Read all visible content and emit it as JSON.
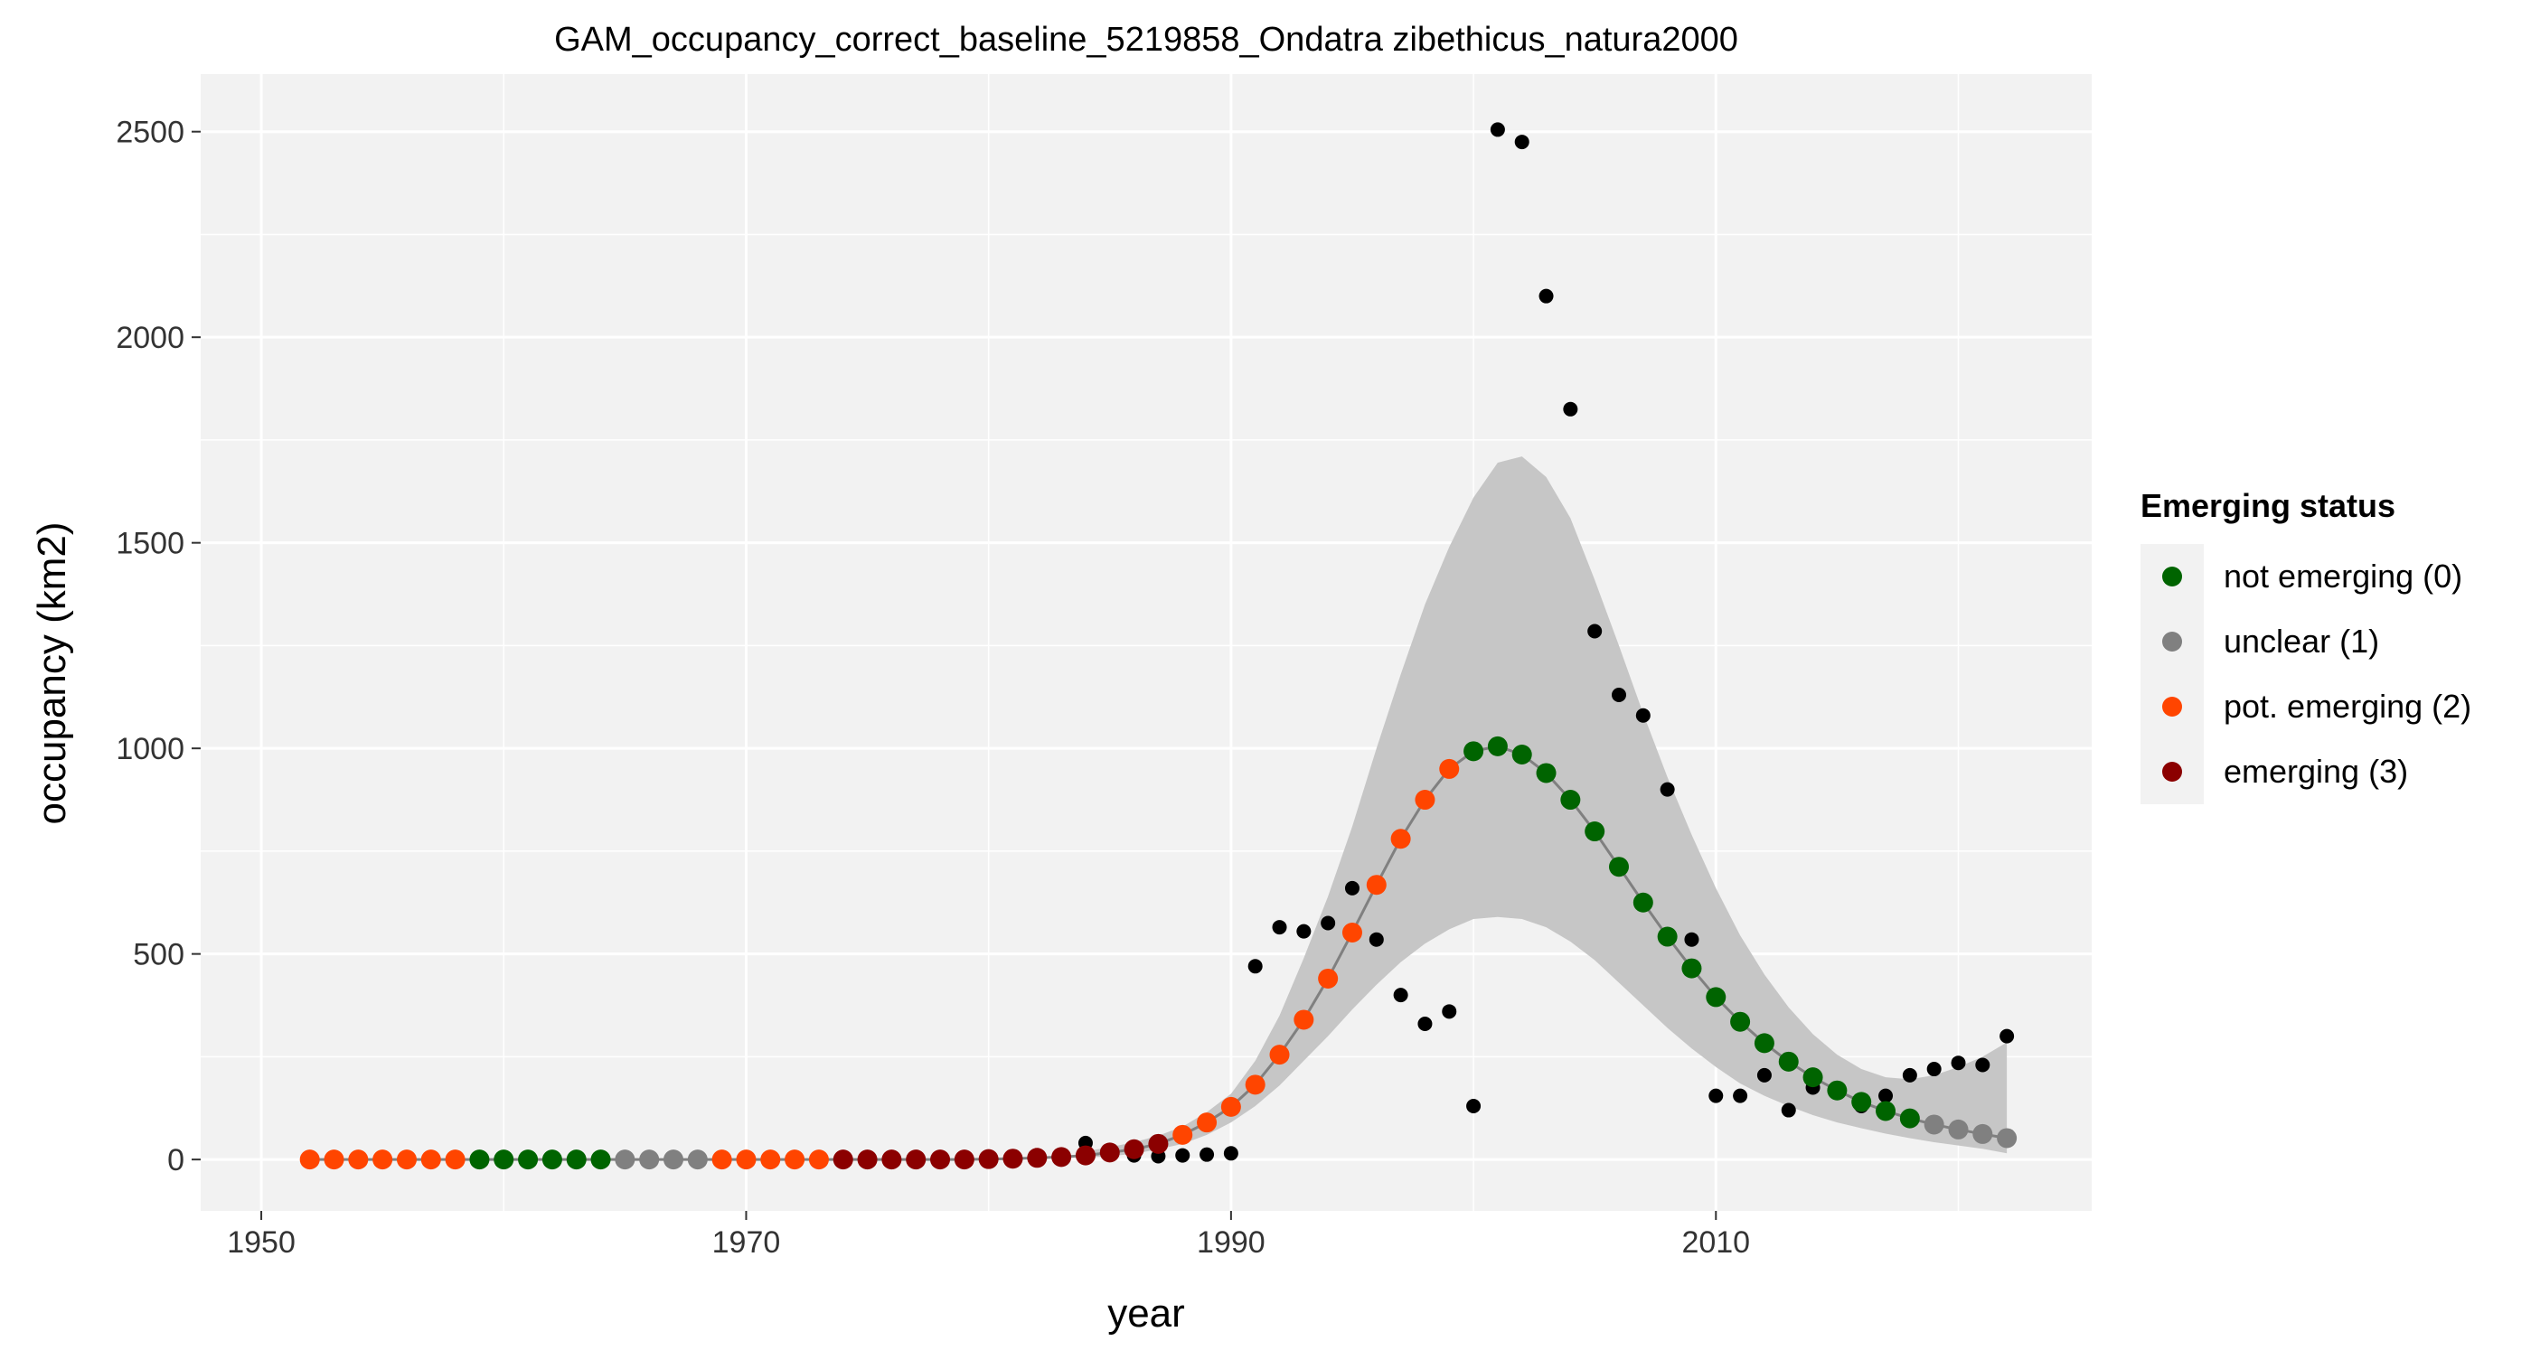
{
  "chart_data": {
    "type": "scatter",
    "title": "GAM_occupancy_correct_baseline_5219858_Ondatra zibethicus_natura2000",
    "xlabel": "year",
    "ylabel": "occupancy (km2)",
    "xlim": [
      1947.5,
      2025.5
    ],
    "ylim": [
      -125,
      2640
    ],
    "x_ticks": [
      1950,
      1970,
      1990,
      2010
    ],
    "y_ticks": [
      0,
      500,
      1000,
      1500,
      2000,
      2500
    ],
    "grid": true,
    "background": "#f2f2f2",
    "legend": {
      "title": "Emerging status",
      "position": "right",
      "items": [
        {
          "label": "not emerging (0)",
          "color": "#006400"
        },
        {
          "label": "unclear (1)",
          "color": "#808080"
        },
        {
          "label": "pot. emerging (2)",
          "color": "#ff4500"
        },
        {
          "label": "emerging (3)",
          "color": "#8b0000"
        }
      ]
    },
    "observed": {
      "color": "#000000",
      "points": [
        [
          1984,
          40
        ],
        [
          1985,
          15
        ],
        [
          1986,
          10
        ],
        [
          1987,
          8
        ],
        [
          1988,
          10
        ],
        [
          1989,
          12
        ],
        [
          1990,
          15
        ],
        [
          1991,
          470
        ],
        [
          1992,
          565
        ],
        [
          1993,
          555
        ],
        [
          1994,
          575
        ],
        [
          1995,
          660
        ],
        [
          1996,
          535
        ],
        [
          1997,
          400
        ],
        [
          1998,
          330
        ],
        [
          1999,
          360
        ],
        [
          2000,
          130
        ],
        [
          2001,
          2505
        ],
        [
          2002,
          2475
        ],
        [
          2003,
          2100
        ],
        [
          2004,
          1825
        ],
        [
          2005,
          1285
        ],
        [
          2006,
          1130
        ],
        [
          2007,
          1080
        ],
        [
          2008,
          900
        ],
        [
          2009,
          535
        ],
        [
          2010,
          155
        ],
        [
          2011,
          155
        ],
        [
          2012,
          205
        ],
        [
          2013,
          120
        ],
        [
          2014,
          175
        ],
        [
          2015,
          165
        ],
        [
          2016,
          130
        ],
        [
          2017,
          155
        ],
        [
          2018,
          205
        ],
        [
          2019,
          220
        ],
        [
          2020,
          235
        ],
        [
          2021,
          230
        ],
        [
          2022,
          300
        ]
      ]
    },
    "fit_line_color": "#808080",
    "ribbon_color": "#c6c6c6",
    "ribbon": {
      "x": [
        1984,
        1985,
        1986,
        1987,
        1988,
        1989,
        1990,
        1991,
        1992,
        1993,
        1994,
        1995,
        1996,
        1997,
        1998,
        1999,
        2000,
        2001,
        2002,
        2003,
        2004,
        2005,
        2006,
        2007,
        2008,
        2009,
        2010,
        2011,
        2012,
        2013,
        2014,
        2015,
        2016,
        2017,
        2018,
        2019,
        2020,
        2021,
        2022
      ],
      "lower": [
        5,
        8,
        14,
        25,
        38,
        60,
        90,
        130,
        180,
        240,
        300,
        365,
        425,
        480,
        525,
        560,
        585,
        590,
        585,
        565,
        530,
        485,
        430,
        375,
        320,
        270,
        225,
        185,
        155,
        130,
        108,
        90,
        76,
        63,
        52,
        42,
        34,
        26,
        15
      ],
      "upper": [
        20,
        30,
        42,
        58,
        80,
        115,
        160,
        240,
        350,
        490,
        640,
        810,
        1000,
        1180,
        1350,
        1490,
        1610,
        1695,
        1710,
        1660,
        1560,
        1410,
        1250,
        1085,
        930,
        790,
        660,
        545,
        450,
        370,
        305,
        255,
        220,
        200,
        195,
        205,
        225,
        250,
        285
      ]
    },
    "fitted": [
      {
        "x": 1952,
        "y": 0,
        "status": 2
      },
      {
        "x": 1953,
        "y": 0,
        "status": 2
      },
      {
        "x": 1954,
        "y": 0,
        "status": 2
      },
      {
        "x": 1955,
        "y": 0,
        "status": 2
      },
      {
        "x": 1956,
        "y": 0,
        "status": 2
      },
      {
        "x": 1957,
        "y": 0,
        "status": 2
      },
      {
        "x": 1958,
        "y": 0,
        "status": 2
      },
      {
        "x": 1959,
        "y": 0,
        "status": 0
      },
      {
        "x": 1960,
        "y": 0,
        "status": 0
      },
      {
        "x": 1961,
        "y": 0,
        "status": 0
      },
      {
        "x": 1962,
        "y": 0,
        "status": 0
      },
      {
        "x": 1963,
        "y": 0,
        "status": 0
      },
      {
        "x": 1964,
        "y": 0,
        "status": 0
      },
      {
        "x": 1965,
        "y": 0,
        "status": 1
      },
      {
        "x": 1966,
        "y": 0,
        "status": 1
      },
      {
        "x": 1967,
        "y": 0,
        "status": 1
      },
      {
        "x": 1968,
        "y": 0,
        "status": 1
      },
      {
        "x": 1969,
        "y": 0,
        "status": 2
      },
      {
        "x": 1970,
        "y": 0,
        "status": 2
      },
      {
        "x": 1971,
        "y": 0,
        "status": 2
      },
      {
        "x": 1972,
        "y": 0,
        "status": 2
      },
      {
        "x": 1973,
        "y": 0,
        "status": 2
      },
      {
        "x": 1974,
        "y": 0,
        "status": 3
      },
      {
        "x": 1975,
        "y": 0,
        "status": 3
      },
      {
        "x": 1976,
        "y": 0,
        "status": 3
      },
      {
        "x": 1977,
        "y": 0,
        "status": 3
      },
      {
        "x": 1978,
        "y": 0,
        "status": 3
      },
      {
        "x": 1979,
        "y": 0,
        "status": 3
      },
      {
        "x": 1980,
        "y": 1,
        "status": 3
      },
      {
        "x": 1981,
        "y": 2,
        "status": 3
      },
      {
        "x": 1982,
        "y": 4,
        "status": 3
      },
      {
        "x": 1983,
        "y": 6,
        "status": 3
      },
      {
        "x": 1984,
        "y": 10,
        "status": 3
      },
      {
        "x": 1985,
        "y": 17,
        "status": 3
      },
      {
        "x": 1986,
        "y": 25,
        "status": 3
      },
      {
        "x": 1987,
        "y": 38,
        "status": 3
      },
      {
        "x": 1988,
        "y": 60,
        "status": 2
      },
      {
        "x": 1989,
        "y": 90,
        "status": 2
      },
      {
        "x": 1990,
        "y": 128,
        "status": 2
      },
      {
        "x": 1991,
        "y": 182,
        "status": 2
      },
      {
        "x": 1992,
        "y": 255,
        "status": 2
      },
      {
        "x": 1993,
        "y": 340,
        "status": 2
      },
      {
        "x": 1994,
        "y": 440,
        "status": 2
      },
      {
        "x": 1995,
        "y": 552,
        "status": 2
      },
      {
        "x": 1996,
        "y": 668,
        "status": 2
      },
      {
        "x": 1997,
        "y": 780,
        "status": 2
      },
      {
        "x": 1998,
        "y": 875,
        "status": 2
      },
      {
        "x": 1999,
        "y": 950,
        "status": 2
      },
      {
        "x": 2000,
        "y": 993,
        "status": 0
      },
      {
        "x": 2001,
        "y": 1005,
        "status": 0
      },
      {
        "x": 2002,
        "y": 985,
        "status": 0
      },
      {
        "x": 2003,
        "y": 940,
        "status": 0
      },
      {
        "x": 2004,
        "y": 875,
        "status": 0
      },
      {
        "x": 2005,
        "y": 798,
        "status": 0
      },
      {
        "x": 2006,
        "y": 712,
        "status": 0
      },
      {
        "x": 2007,
        "y": 625,
        "status": 0
      },
      {
        "x": 2008,
        "y": 542,
        "status": 0
      },
      {
        "x": 2009,
        "y": 465,
        "status": 0
      },
      {
        "x": 2010,
        "y": 395,
        "status": 0
      },
      {
        "x": 2011,
        "y": 335,
        "status": 0
      },
      {
        "x": 2012,
        "y": 283,
        "status": 0
      },
      {
        "x": 2013,
        "y": 238,
        "status": 0
      },
      {
        "x": 2014,
        "y": 200,
        "status": 0
      },
      {
        "x": 2015,
        "y": 168,
        "status": 0
      },
      {
        "x": 2016,
        "y": 140,
        "status": 0
      },
      {
        "x": 2017,
        "y": 118,
        "status": 0
      },
      {
        "x": 2018,
        "y": 100,
        "status": 0
      },
      {
        "x": 2019,
        "y": 85,
        "status": 1
      },
      {
        "x": 2020,
        "y": 73,
        "status": 1
      },
      {
        "x": 2021,
        "y": 62,
        "status": 1
      },
      {
        "x": 2022,
        "y": 52,
        "status": 1
      }
    ]
  }
}
